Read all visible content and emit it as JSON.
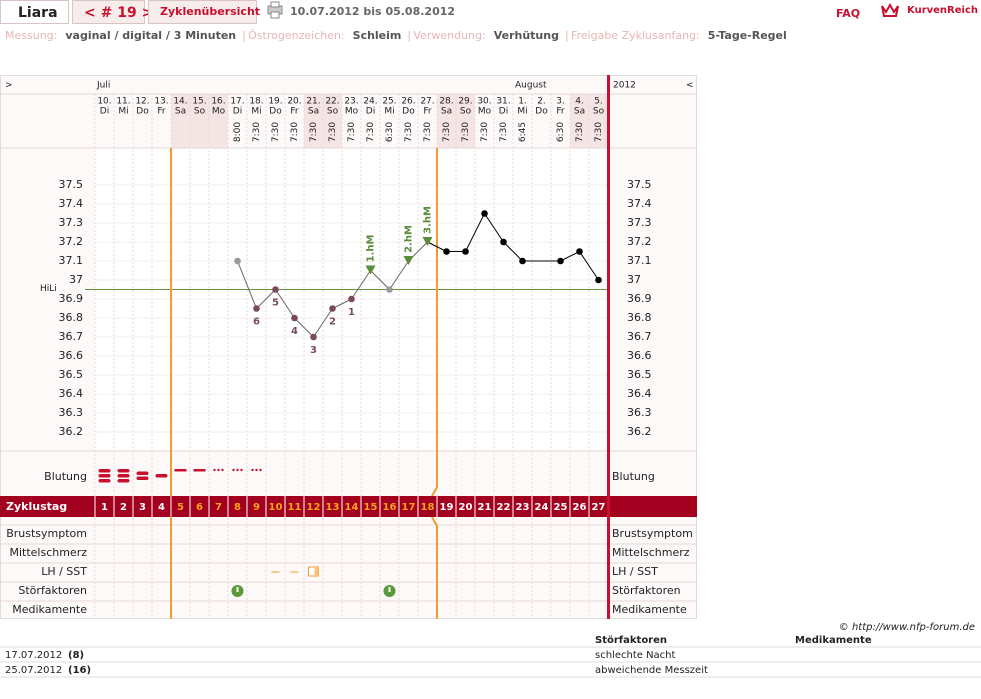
{
  "header": {
    "name": "Liara",
    "cycle": "< # 19 >",
    "overview": "Zyklenübersicht",
    "range": "10.07.2012 bis 05.08.2012",
    "faq": "FAQ",
    "brand": "KurvenReich"
  },
  "settings": [
    {
      "label": "Messung:",
      "value": "vaginal / digital / 3 Minuten"
    },
    {
      "label": "Östrogenzeichen:",
      "value": "Schleim"
    },
    {
      "label": "Verwendung:",
      "value": "Verhütung"
    },
    {
      "label": "Freigabe Zyklusanfang:",
      "value": "5-Tage-Regel"
    }
  ],
  "chart_data": {
    "type": "line",
    "nav_left": ">",
    "nav_right": "<",
    "months": [
      "Juli",
      "August"
    ],
    "year": "2012",
    "categories": [
      "10.",
      "11.",
      "12.",
      "13.",
      "14.",
      "15.",
      "16.",
      "17.",
      "18.",
      "19.",
      "20.",
      "21.",
      "22.",
      "23.",
      "24.",
      "25.",
      "26.",
      "27.",
      "28.",
      "29.",
      "30.",
      "31.",
      "1.",
      "2.",
      "3.",
      "4.",
      "5."
    ],
    "weekdays": [
      "Di",
      "Mi",
      "Do",
      "Fr",
      "Sa",
      "So",
      "Mo",
      "Di",
      "Mi",
      "Do",
      "Fr",
      "Sa",
      "So",
      "Mo",
      "Di",
      "Mi",
      "Do",
      "Fr",
      "Sa",
      "So",
      "Mo",
      "Di",
      "Mi",
      "Do",
      "Fr",
      "Sa",
      "So"
    ],
    "times": [
      null,
      null,
      null,
      null,
      null,
      null,
      null,
      "8:00",
      "7:30",
      "7:30",
      "7:30",
      "7:30",
      "7:30",
      "7:30",
      "7:30",
      "6:30",
      "7:30",
      "7:30",
      "7:30",
      "7:30",
      "7:30",
      "7:30",
      "6:45",
      null,
      "6:30",
      "7:30",
      "7:30"
    ],
    "values": [
      null,
      null,
      null,
      null,
      null,
      null,
      null,
      37.1,
      36.85,
      36.95,
      36.8,
      36.7,
      36.85,
      36.9,
      37.05,
      36.95,
      37.1,
      37.2,
      37.15,
      37.15,
      37.35,
      37.2,
      37.1,
      null,
      37.1,
      37.15,
      37
    ],
    "point_colors": [
      null,
      null,
      null,
      null,
      null,
      null,
      null,
      "#9a9a9a",
      "#7b4a5c",
      "#7b4a5c",
      "#7b4a5c",
      "#7b4a5c",
      "#7b4a5c",
      "#7b4a5c",
      "#5b8c3a",
      "#9a9a9a",
      "#5b8c3a",
      "#5b8c3a",
      "#000000",
      "#000000",
      "#000000",
      "#000000",
      "#000000",
      null,
      "#000000",
      "#000000",
      "#000000"
    ],
    "low_labels": [
      null,
      null,
      null,
      null,
      null,
      null,
      null,
      null,
      6,
      5,
      4,
      3,
      2,
      1,
      null,
      null,
      null,
      null,
      null,
      null,
      null,
      null,
      null,
      null,
      null,
      null,
      null
    ],
    "hm_labels": [
      null,
      null,
      null,
      null,
      null,
      null,
      null,
      null,
      null,
      null,
      null,
      null,
      null,
      null,
      "1.hM",
      null,
      "2.hM",
      "3.hM",
      null,
      null,
      null,
      null,
      null,
      null,
      null,
      null,
      null
    ],
    "ylim": [
      36.1,
      37.7
    ],
    "yticks": [
      36.2,
      36.3,
      36.4,
      36.5,
      36.6,
      36.7,
      36.8,
      36.9,
      37,
      37.1,
      37.2,
      37.3,
      37.4,
      37.5
    ],
    "hili": {
      "label": "HiLi",
      "value": 36.95,
      "color": "#6b8e3a"
    },
    "cycle_day_label": "Zyklustag",
    "cycle_days": [
      1,
      2,
      3,
      4,
      5,
      6,
      7,
      8,
      9,
      10,
      11,
      12,
      13,
      14,
      15,
      16,
      17,
      18,
      19,
      20,
      21,
      22,
      23,
      24,
      25,
      26,
      27
    ],
    "rows": [
      "Blutung",
      "Brustsymptom",
      "Mittelschmerz",
      "LH / SST",
      "Störfaktoren",
      "Medikamente"
    ]
  },
  "footer": {
    "copyright": "© http://www.nfp-forum.de",
    "columns": [
      "Störfaktoren",
      "Medikamente"
    ],
    "entries": [
      {
        "date": "17.07.2012",
        "day": "(8)",
        "note": "schlechte Nacht"
      },
      {
        "date": "25.07.2012",
        "day": "(16)",
        "note": "abweichende Messzeit"
      }
    ]
  }
}
